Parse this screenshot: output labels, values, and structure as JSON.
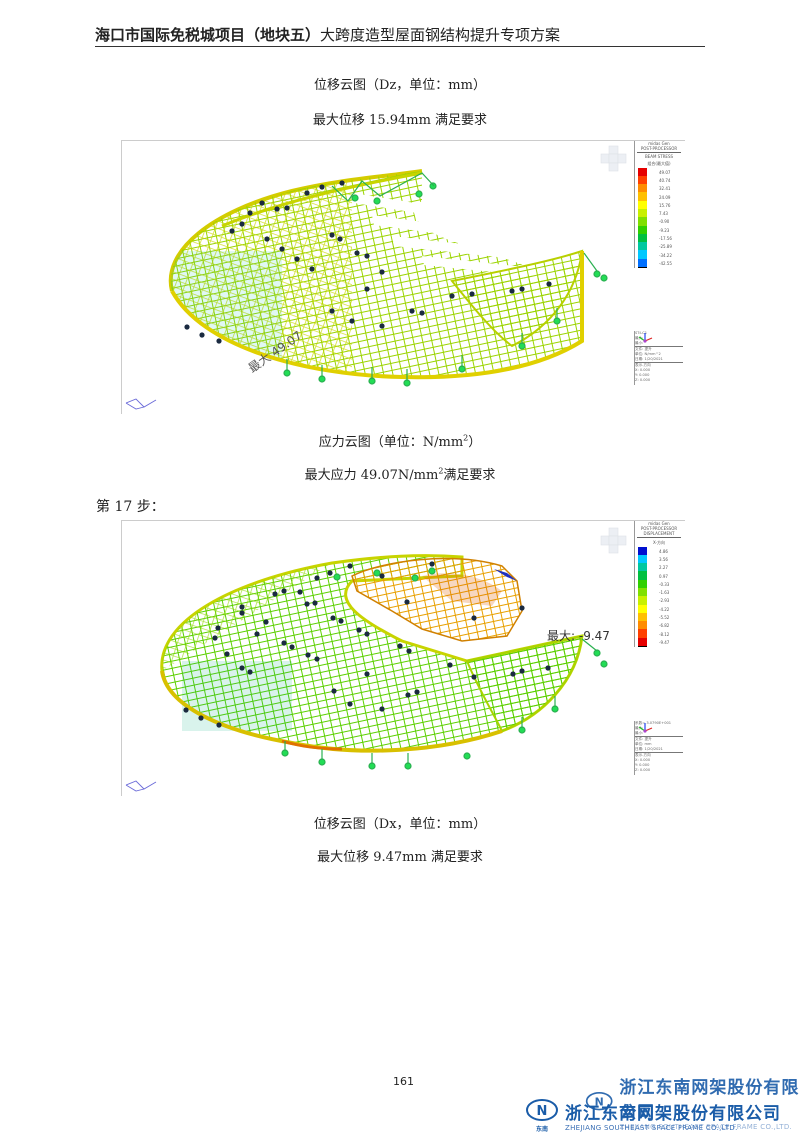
{
  "header": {
    "title_bold": "海口市国际免税城项目（地块五）",
    "title_light": "大跨度造型屋面钢结构提升专项方案"
  },
  "section1": {
    "caption_top_1": "位移云图（Dz，单位：mm）",
    "caption_top_2": "最大位移 15.94mm 满足要求",
    "figure": {
      "annotation": "最大 49.07",
      "legend": {
        "header_lines": [
          "midas Gen",
          "POST-PROCESSOR",
          "BEAM STRESS"
        ],
        "subtitle": "组合(最大值)",
        "values": [
          "49.07",
          "40.74",
          "32.41",
          "24.09",
          "15.76",
          "7.43",
          "-0.90",
          "-9.23",
          "-17.56",
          "-25.89",
          "-34.22",
          "-42.55"
        ],
        "colors": [
          "#e60000",
          "#ff4000",
          "#ff8c00",
          "#ffc000",
          "#ffff00",
          "#c8f000",
          "#80e000",
          "#30d000",
          "#00c040",
          "#00c8a0",
          "#00c8ff",
          "#0070ff"
        ]
      },
      "info_lines": [
        "ST:LC1",
        "最大:",
        "最小:",
        "文件: 提升",
        "单位: N/mm^2",
        "日期: 1/20/2021",
        "表示-方向",
        "X: 0.000",
        "Y: 0.000",
        "Z: 0.000"
      ]
    },
    "caption_bottom_1": "应力云图（单位：N/mm",
    "caption_bottom_1_sup": "2",
    "caption_bottom_1_end": "）",
    "caption_bottom_2": "最大应力 49.07N/mm",
    "caption_bottom_2_sup": "2",
    "caption_bottom_2_end": "满足要求"
  },
  "section2": {
    "step_label": "第 17 步：",
    "figure": {
      "annotation": "最大: -9.47",
      "legend": {
        "header_lines": [
          "midas Gen",
          "POST-PROCESSOR",
          "DISPLACEMENT"
        ],
        "subtitle": "X-方向",
        "values": [
          "4.86",
          "3.56",
          "2.27",
          "0.97",
          "-0.33",
          "-1.63",
          "-2.93",
          "-4.22",
          "-5.52",
          "-6.82",
          "-8.12",
          "-9.47"
        ],
        "colors": [
          "#0010d0",
          "#00c8ff",
          "#00c8a0",
          "#00c040",
          "#30d000",
          "#80e000",
          "#c8f000",
          "#ffff00",
          "#ffc000",
          "#ff8c00",
          "#ff4000",
          "#e60000"
        ]
      },
      "info_lines": [
        "系数= 3.0790E+001",
        "最大:",
        "最小:",
        "文件: 提升",
        "单位: mm",
        "日期: 1/20/2021",
        "表示-方向",
        "X: 0.000",
        "Y: 0.000",
        "Z: 0.000"
      ]
    },
    "caption_1": "位移云图（Dx，单位：mm）",
    "caption_2": "最大位移 9.47mm 满足要求"
  },
  "footer": {
    "page_number": "161",
    "logo_cn": "浙江东南网架股份有限公司",
    "logo_en": "ZHEJIANG SOUTHEAST SPACE FRAME CO.,LTD.",
    "logo_badge": "东南"
  }
}
